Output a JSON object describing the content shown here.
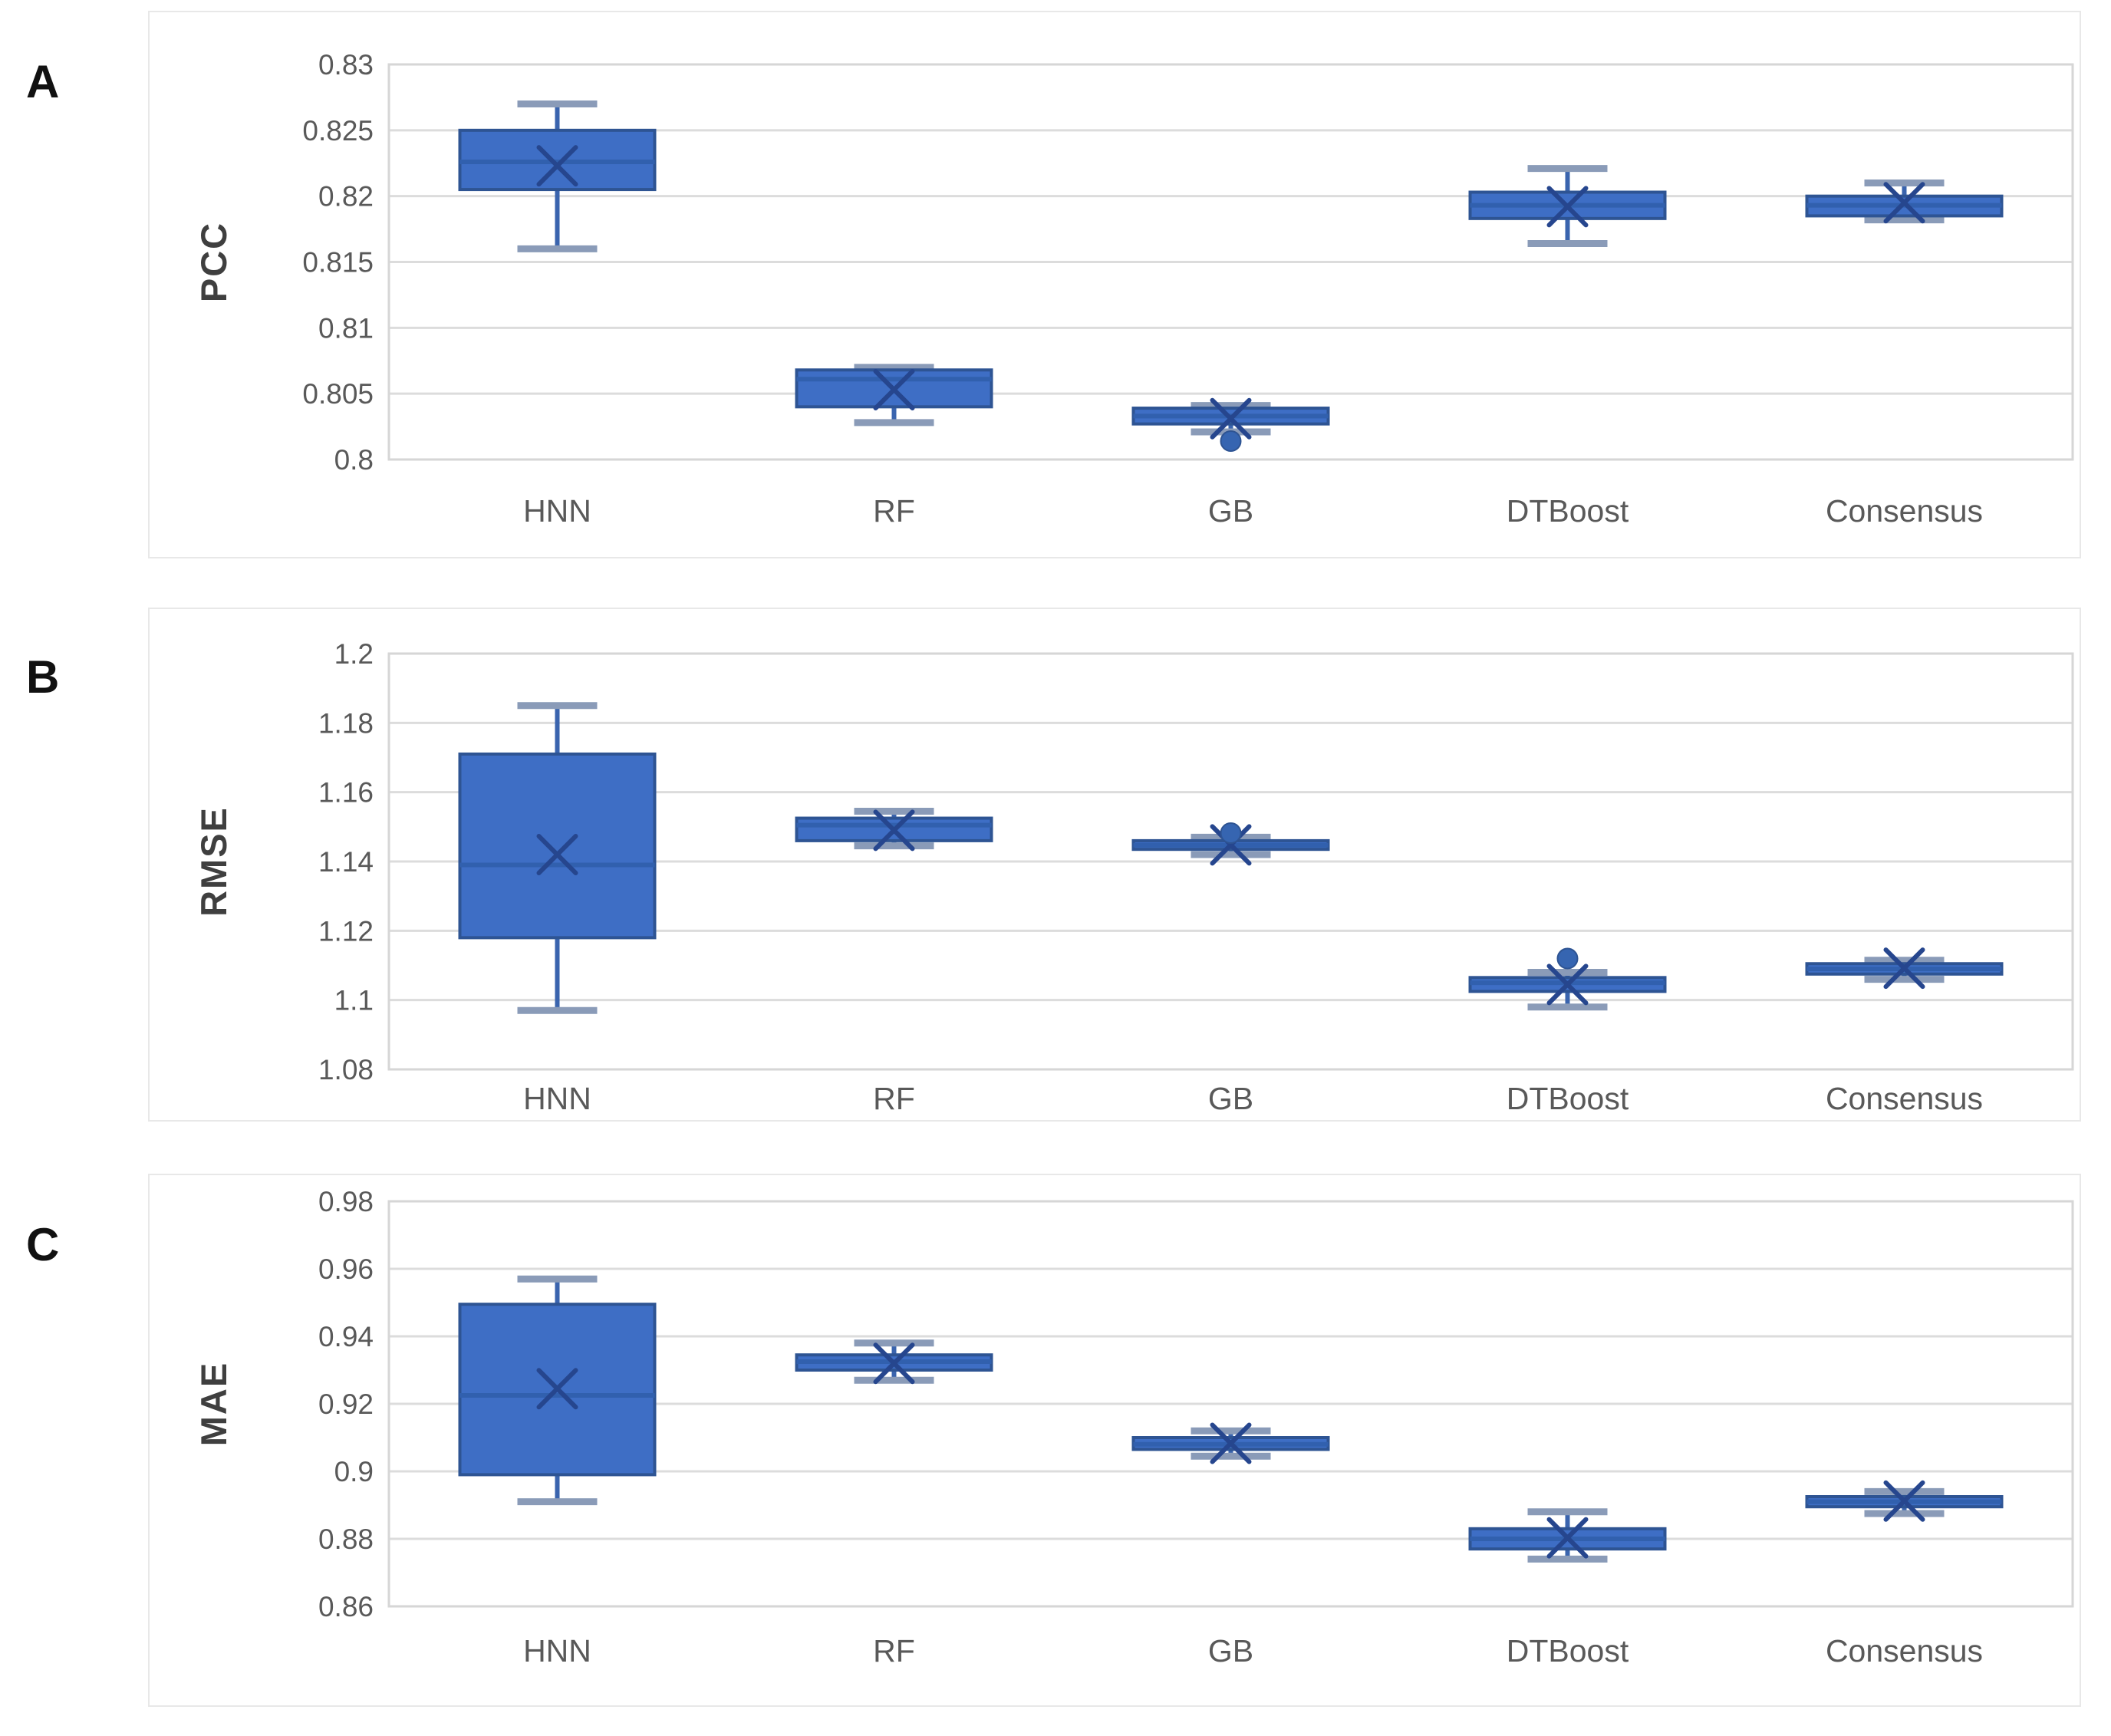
{
  "figure": {
    "description": "Three stacked box-and-whisker panels comparing five models",
    "panel_letters": [
      "A",
      "B",
      "C"
    ]
  },
  "colors": {
    "box_fill": "#3E6EC5",
    "box_border": "#2E5493",
    "median_line": "#3160AE",
    "mean_marker": "#26468E",
    "whisker_line": "#3A64AE",
    "whisker_cap": "#8A9BB8",
    "outlier": "#3665B1",
    "gridline": "#DCDCDC",
    "plot_border": "#D6D6D6",
    "tick_text": "#595959",
    "category_text": "#595959",
    "axis_title_text": "#3F3F3F"
  },
  "chart_data": [
    {
      "type": "boxplot",
      "panel_label": "A",
      "ylabel": "PCC",
      "ymin": 0.8,
      "ymax": 0.83,
      "grid": true,
      "legend": false,
      "ytick_labels": [
        "0.8",
        "0.805",
        "0.81",
        "0.815",
        "0.82",
        "0.825",
        "0.83"
      ],
      "categories": [
        "HNN",
        "RF",
        "GB",
        "DTBoost",
        "Consensus"
      ],
      "series": [
        {
          "category": "HNN",
          "whisker_low": 0.816,
          "q1": 0.8205,
          "median": 0.8226,
          "mean": 0.8223,
          "q3": 0.825,
          "whisker_high": 0.827,
          "outliers": []
        },
        {
          "category": "RF",
          "whisker_low": 0.8028,
          "q1": 0.804,
          "median": 0.8061,
          "mean": 0.8053,
          "q3": 0.8068,
          "whisker_high": 0.807,
          "outliers": []
        },
        {
          "category": "GB",
          "whisker_low": 0.8021,
          "q1": 0.8027,
          "median": 0.8033,
          "mean": 0.8031,
          "q3": 0.8039,
          "whisker_high": 0.8041,
          "outliers": [
            0.8014
          ]
        },
        {
          "category": "DTBoost",
          "whisker_low": 0.8164,
          "q1": 0.8183,
          "median": 0.8193,
          "mean": 0.8192,
          "q3": 0.8203,
          "whisker_high": 0.8221,
          "outliers": []
        },
        {
          "category": "Consensus",
          "whisker_low": 0.8182,
          "q1": 0.8185,
          "median": 0.8193,
          "mean": 0.8195,
          "q3": 0.82,
          "whisker_high": 0.821,
          "outliers": []
        }
      ]
    },
    {
      "type": "boxplot",
      "panel_label": "B",
      "ylabel": "RMSE",
      "ymin": 1.08,
      "ymax": 1.2,
      "grid": true,
      "legend": false,
      "ytick_labels": [
        "1.08",
        "1.1",
        "1.12",
        "1.14",
        "1.16",
        "1.18",
        "1.2"
      ],
      "categories": [
        "HNN",
        "RF",
        "GB",
        "DTBoost",
        "Consensus"
      ],
      "series": [
        {
          "category": "HNN",
          "whisker_low": 1.097,
          "q1": 1.118,
          "median": 1.139,
          "mean": 1.142,
          "q3": 1.171,
          "whisker_high": 1.185,
          "outliers": []
        },
        {
          "category": "RF",
          "whisker_low": 1.1445,
          "q1": 1.146,
          "median": 1.1505,
          "mean": 1.149,
          "q3": 1.1525,
          "whisker_high": 1.1545,
          "outliers": []
        },
        {
          "category": "GB",
          "whisker_low": 1.142,
          "q1": 1.1435,
          "median": 1.1447,
          "mean": 1.1448,
          "q3": 1.146,
          "whisker_high": 1.147,
          "outliers": [
            1.1482
          ]
        },
        {
          "category": "DTBoost",
          "whisker_low": 1.098,
          "q1": 1.1025,
          "median": 1.105,
          "mean": 1.1045,
          "q3": 1.1065,
          "whisker_high": 1.108,
          "outliers": [
            1.112
          ]
        },
        {
          "category": "Consensus",
          "whisker_low": 1.106,
          "q1": 1.1075,
          "median": 1.109,
          "mean": 1.1092,
          "q3": 1.1105,
          "whisker_high": 1.1115,
          "outliers": []
        }
      ]
    },
    {
      "type": "boxplot",
      "panel_label": "C",
      "ylabel": "MAE",
      "ymin": 0.86,
      "ymax": 0.98,
      "grid": true,
      "legend": false,
      "ytick_labels": [
        "0.86",
        "0.88",
        "0.9",
        "0.92",
        "0.94",
        "0.96",
        "0.98"
      ],
      "categories": [
        "HNN",
        "RF",
        "GB",
        "DTBoost",
        "Consensus"
      ],
      "series": [
        {
          "category": "HNN",
          "whisker_low": 0.891,
          "q1": 0.899,
          "median": 0.9225,
          "mean": 0.9245,
          "q3": 0.9495,
          "whisker_high": 0.957,
          "outliers": []
        },
        {
          "category": "RF",
          "whisker_low": 0.927,
          "q1": 0.93,
          "median": 0.9325,
          "mean": 0.932,
          "q3": 0.9345,
          "whisker_high": 0.938,
          "outliers": []
        },
        {
          "category": "GB",
          "whisker_low": 0.9045,
          "q1": 0.9065,
          "median": 0.908,
          "mean": 0.9083,
          "q3": 0.91,
          "whisker_high": 0.912,
          "outliers": []
        },
        {
          "category": "DTBoost",
          "whisker_low": 0.874,
          "q1": 0.877,
          "median": 0.88,
          "mean": 0.8803,
          "q3": 0.883,
          "whisker_high": 0.888,
          "outliers": []
        },
        {
          "category": "Consensus",
          "whisker_low": 0.8875,
          "q1": 0.8895,
          "median": 0.891,
          "mean": 0.8912,
          "q3": 0.8925,
          "whisker_high": 0.894,
          "outliers": []
        }
      ]
    }
  ]
}
